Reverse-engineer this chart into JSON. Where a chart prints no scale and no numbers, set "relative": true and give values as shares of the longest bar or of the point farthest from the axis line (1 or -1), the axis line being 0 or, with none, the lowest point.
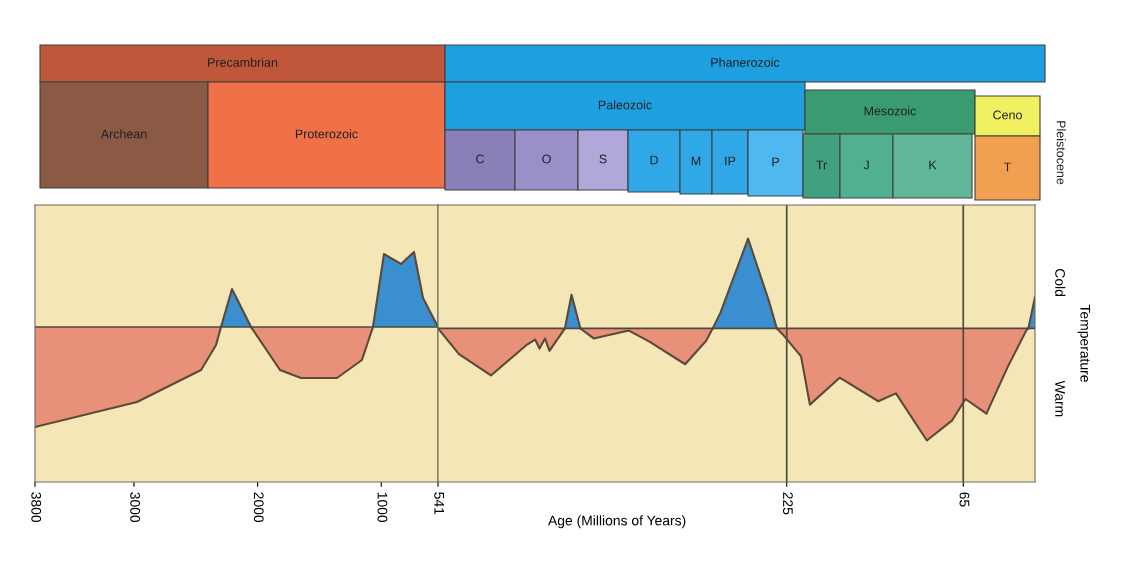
{
  "chart_data": [
    {
      "type": "other",
      "annotations": [
        "Precambrian",
        "Phanerozoic",
        "Archean",
        "Proterozoic",
        "Paleozoic",
        "Mesozoic",
        "Ceno",
        "C",
        "O",
        "S",
        "D",
        "M",
        "IP",
        "P",
        "Tr",
        "J",
        "K",
        "T",
        "Pleistocene"
      ],
      "colors": [
        "#c0563a",
        "#1ea0e0",
        "#8a5a45",
        "#f07048",
        "#1ea0e0",
        "#3a9a70",
        "#f0f060",
        "#8a80b8",
        "#9a90c8",
        "#b0a8d8",
        "#30a8e8",
        "#30a8e8",
        "#30a8e8",
        "#50b8f0",
        "#40a080",
        "#50b090",
        "#60b898",
        "#f0a050",
        null
      ]
    },
    {
      "type": "area",
      "relative": true,
      "xlim": [
        3800,
        541
      ],
      "xticks": [
        3800,
        3000,
        2000,
        1000,
        541
      ],
      "x": [
        3800,
        2975,
        2457,
        2336,
        2296,
        2207,
        2053,
        1819,
        1649,
        1358,
        1156,
        1067,
        978,
        840,
        735,
        662,
        541
      ],
      "series": [
        {
          "color": "#e8907a",
          "values": [
            -1,
            -0.75,
            -0.43,
            -0.18,
            0,
            null,
            0,
            -0.43,
            -0.51,
            -0.51,
            -0.33,
            0,
            null,
            null,
            null,
            null,
            null
          ]
        },
        {
          "color": "#3a8fd0",
          "values": [
            null,
            null,
            null,
            null,
            0,
            0.38,
            0,
            null,
            null,
            null,
            null,
            0,
            0.73,
            0.63,
            0.75,
            0.29,
            0
          ]
        }
      ]
    },
    {
      "type": "area",
      "relative": true,
      "xlim": [
        541,
        0
      ],
      "xticks": [
        225,
        65
      ],
      "xlabel": "Age (Millions of Years)",
      "ylabel": "Temperature",
      "annotations": [
        "Cold",
        "Warm"
      ],
      "ref_lines": [
        {
          "axis": "x",
          "value": 225,
          "color": "#4a4a40"
        },
        {
          "axis": "x",
          "value": 65,
          "color": "#4a4a40"
        }
      ],
      "x": [
        541,
        522,
        493,
        461,
        453,
        449,
        444,
        440,
        426,
        420,
        412,
        400,
        368,
        349,
        317,
        298,
        292,
        285,
        260,
        241,
        234,
        228,
        212,
        204,
        177,
        142,
        126,
        98,
        75,
        63,
        44,
        25,
        8,
        6,
        0
      ],
      "series": [
        {
          "color": "#e8907a",
          "values": [
            0,
            -0.23,
            -0.42,
            -0.15,
            -0.1,
            -0.18,
            -0.09,
            -0.2,
            0,
            null,
            0,
            -0.09,
            -0.02,
            -0.12,
            -0.32,
            -0.11,
            0,
            null,
            null,
            null,
            0,
            -0.06,
            -0.25,
            -0.68,
            -0.44,
            -0.65,
            -0.58,
            -1,
            -0.82,
            -0.63,
            -0.76,
            -0.35,
            -0.02,
            0,
            null
          ]
        },
        {
          "color": "#3a8fd0",
          "values": [
            null,
            null,
            null,
            null,
            null,
            null,
            null,
            null,
            0,
            0.3,
            0,
            null,
            null,
            null,
            null,
            null,
            0,
            0.14,
            0.8,
            0.24,
            0,
            null,
            null,
            null,
            null,
            null,
            null,
            null,
            null,
            null,
            null,
            null,
            null,
            0,
            0.28
          ]
        }
      ]
    }
  ]
}
